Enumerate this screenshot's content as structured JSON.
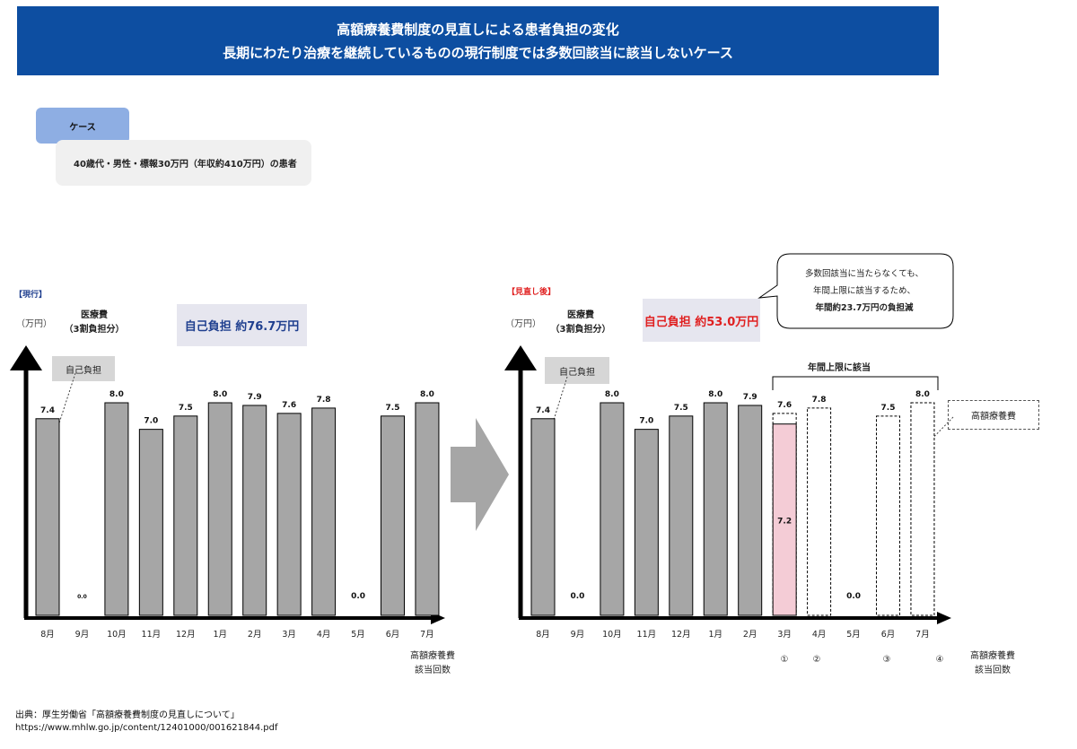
{
  "header": {
    "title_line1": "高額療養費制度の見直しによる患者負担の変化",
    "title_line2": "長期にわたり治療を継続しているものの現行制度では多数回該当に該当しないケース"
  },
  "case": {
    "tag": "ケース",
    "description": "40歳代・男性・標報30万円（年収約410万円）の患者"
  },
  "current": {
    "label": "【現行】",
    "unit": "（万円）",
    "medical_label_1": "医療費",
    "medical_label_2": "（3割負担分）",
    "total": "自己負担 約76.7万円",
    "self_pay_tag": "自己負担",
    "x_note_1": "高額療養費",
    "x_note_2": "該当回数"
  },
  "revised": {
    "label": "【見直し後】",
    "unit": "（万円）",
    "medical_label_1": "医療費",
    "medical_label_2": "（3割負担分）",
    "total": "自己負担 約53.0万円",
    "self_pay_tag": "自己負担",
    "cap_label": "年間上限に該当",
    "hce_tag": "高額療養費",
    "bubble_line1": "多数回該当に当たらなくても、",
    "bubble_line2": "年間上限に該当するため、",
    "bubble_line3": "年間約23.7万円の負担減",
    "x_note_1": "高額療養費",
    "x_note_2": "該当回数",
    "counts": [
      "①",
      "②",
      "③",
      "④"
    ]
  },
  "footer": {
    "source": "出典：厚生労働省「高額療養費制度の見直しについて」",
    "url": "https://www.mhlw.go.jp/content/12401000/001621844.pdf"
  },
  "colors": {
    "banner": "#0d4ea1",
    "bar": "#a6a6a6",
    "pink": "#f4ccd6",
    "total_current_text": "#1f3f8f",
    "total_revised_text": "#e02020",
    "red_label": "#e02020",
    "blue_label": "#1f3f8f"
  },
  "chart_data": [
    {
      "type": "bar",
      "title": "【現行】",
      "ylabel": "（万円）",
      "categories": [
        "8月",
        "9月",
        "10月",
        "11月",
        "12月",
        "1月",
        "2月",
        "3月",
        "4月",
        "5月",
        "6月",
        "7月"
      ],
      "values": [
        7.4,
        0.0,
        8.0,
        7.0,
        7.5,
        8.0,
        7.9,
        7.6,
        7.8,
        0.0,
        7.5,
        8.0
      ],
      "value_labels": [
        "7.4",
        "0.0",
        "8.0",
        "7.0",
        "7.5",
        "8.0",
        "7.9",
        "7.6",
        "7.8",
        "0.0",
        "7.5",
        "8.0"
      ],
      "ylim": [
        0,
        9.5
      ]
    },
    {
      "type": "bar",
      "title": "【見直し後】",
      "ylabel": "（万円）",
      "categories": [
        "8月",
        "9月",
        "10月",
        "11月",
        "12月",
        "1月",
        "2月",
        "3月",
        "4月",
        "5月",
        "6月",
        "7月"
      ],
      "values": [
        7.4,
        0.0,
        8.0,
        7.0,
        7.5,
        8.0,
        7.9,
        7.6,
        7.8,
        0.0,
        7.5,
        8.0
      ],
      "value_labels": [
        "7.4",
        "0.0",
        "8.0",
        "7.0",
        "7.5",
        "8.0",
        "7.9",
        "7.6",
        "7.8",
        "0.0",
        "7.5",
        "8.0"
      ],
      "self_pay_in_march": 7.2,
      "self_pay_label": "7.2",
      "bar_style": [
        "solid",
        "solid",
        "solid",
        "solid",
        "solid",
        "solid",
        "solid",
        "pink-with-dashed-top",
        "dashed",
        "solid",
        "dashed",
        "dashed"
      ],
      "ylim": [
        0,
        9.5
      ]
    }
  ]
}
